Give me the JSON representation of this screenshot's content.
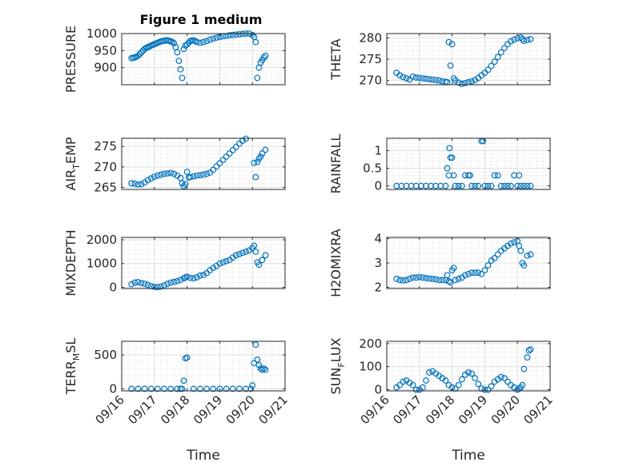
{
  "figure": {
    "title": "Figure 1 medium"
  },
  "chart_data": [
    {
      "type": "scatter",
      "ylabel": "PRESSURE",
      "ylim": [
        850,
        1000
      ],
      "yticks": [
        900,
        950,
        1000
      ],
      "xlim": [
        0,
        5
      ],
      "xticks": [
        0,
        1,
        2,
        3,
        4,
        5
      ],
      "xticklabels": [],
      "grid": true,
      "minor_grid": true,
      "marker_color": "#0072bd",
      "x": [
        0.3,
        0.35,
        0.4,
        0.45,
        0.5,
        0.55,
        0.6,
        0.65,
        0.7,
        0.75,
        0.8,
        0.85,
        0.9,
        0.95,
        1.0,
        1.05,
        1.1,
        1.15,
        1.2,
        1.25,
        1.3,
        1.35,
        1.4,
        1.45,
        1.5,
        1.55,
        1.6,
        1.65,
        1.7,
        1.75,
        1.8,
        1.85,
        1.9,
        1.95,
        2.0,
        2.05,
        2.1,
        2.15,
        2.2,
        2.25,
        2.3,
        2.4,
        2.5,
        2.6,
        2.7,
        2.8,
        2.9,
        3.0,
        3.1,
        3.2,
        3.3,
        3.4,
        3.5,
        3.6,
        3.7,
        3.8,
        3.9,
        4.0,
        4.05,
        4.1,
        4.15,
        4.2,
        4.25,
        4.3,
        4.35,
        4.4
      ],
      "y": [
        928,
        929,
        930,
        932,
        935,
        940,
        945,
        950,
        955,
        958,
        960,
        962,
        965,
        967,
        969,
        971,
        973,
        975,
        977,
        978,
        979,
        980,
        980,
        979,
        977,
        975,
        972,
        960,
        945,
        920,
        895,
        870,
        955,
        965,
        968,
        973,
        978,
        980,
        980,
        978,
        975,
        973,
        975,
        978,
        982,
        985,
        988,
        990,
        992,
        993,
        995,
        996,
        997,
        998,
        999,
        1000,
        1000,
        996,
        990,
        975,
        870,
        900,
        915,
        922,
        930,
        935
      ]
    },
    {
      "type": "scatter",
      "ylabel": "THETA",
      "ylim": [
        269,
        281
      ],
      "yticks": [
        270,
        275,
        280
      ],
      "xlim": [
        0,
        5
      ],
      "xticks": [
        0,
        1,
        2,
        3,
        4,
        5
      ],
      "xticklabels": [],
      "grid": true,
      "minor_grid": true,
      "marker_color": "#0072bd",
      "x": [
        0.3,
        0.4,
        0.5,
        0.6,
        0.7,
        0.8,
        0.9,
        1.0,
        1.1,
        1.2,
        1.3,
        1.4,
        1.5,
        1.6,
        1.7,
        1.8,
        1.85,
        1.9,
        1.95,
        2.0,
        2.05,
        2.1,
        2.2,
        2.3,
        2.4,
        2.5,
        2.6,
        2.7,
        2.8,
        2.9,
        3.0,
        3.1,
        3.2,
        3.3,
        3.4,
        3.5,
        3.6,
        3.7,
        3.8,
        3.9,
        4.0,
        4.1,
        4.15,
        4.2,
        4.3,
        4.4
      ],
      "y": [
        271.8,
        271.2,
        270.8,
        270.5,
        270.2,
        270.9,
        270.7,
        270.6,
        270.5,
        270.4,
        270.3,
        270.2,
        270.1,
        270.0,
        269.8,
        269.7,
        269.6,
        279.0,
        273.5,
        278.5,
        270.5,
        270.0,
        269.5,
        269.2,
        269.4,
        269.6,
        269.8,
        270.1,
        270.6,
        271.2,
        271.8,
        272.5,
        273.4,
        274.4,
        275.5,
        276.6,
        277.6,
        278.5,
        279.2,
        279.6,
        279.9,
        280.1,
        279.7,
        279.3,
        279.5,
        279.7
      ]
    },
    {
      "type": "scatter",
      "ylabel": "AIR_TEMP",
      "ylim": [
        264.5,
        277
      ],
      "yticks": [
        265,
        270,
        275
      ],
      "xlim": [
        0,
        5
      ],
      "xticks": [
        0,
        1,
        2,
        3,
        4,
        5
      ],
      "xticklabels": [],
      "grid": true,
      "minor_grid": true,
      "marker_color": "#0072bd",
      "x": [
        0.3,
        0.4,
        0.5,
        0.6,
        0.7,
        0.8,
        0.9,
        1.0,
        1.1,
        1.2,
        1.3,
        1.4,
        1.5,
        1.6,
        1.7,
        1.8,
        1.85,
        1.9,
        1.95,
        2.0,
        2.05,
        2.1,
        2.2,
        2.3,
        2.4,
        2.5,
        2.6,
        2.7,
        2.8,
        2.9,
        3.0,
        3.1,
        3.2,
        3.3,
        3.4,
        3.5,
        3.6,
        3.7,
        3.8,
        3.9,
        4.0,
        4.05,
        4.1,
        4.15,
        4.2,
        4.25,
        4.3,
        4.4
      ],
      "y": [
        266.0,
        265.9,
        265.7,
        265.8,
        266.2,
        266.8,
        267.2,
        267.6,
        267.9,
        268.1,
        268.3,
        268.4,
        268.5,
        268.3,
        267.9,
        267.3,
        266.0,
        265.3,
        265.8,
        268.8,
        267.4,
        267.5,
        267.7,
        267.9,
        268.0,
        268.1,
        268.3,
        268.6,
        269.3,
        270.1,
        270.9,
        271.7,
        272.5,
        273.3,
        274.1,
        274.9,
        275.7,
        276.4,
        276.9,
        277.2,
        277.1,
        271.0,
        267.5,
        271.2,
        272.0,
        272.5,
        273.3,
        274.2
      ]
    },
    {
      "type": "scatter",
      "ylabel": "RAINFALL",
      "ylim": [
        -0.1,
        1.35
      ],
      "yticks": [
        0,
        0.5,
        1
      ],
      "xlim": [
        0,
        5
      ],
      "xticks": [
        0,
        1,
        2,
        3,
        4,
        5
      ],
      "xticklabels": [],
      "grid": true,
      "minor_grid": true,
      "marker_color": "#0072bd",
      "x": [
        0.3,
        0.45,
        0.6,
        0.75,
        0.9,
        1.05,
        1.2,
        1.35,
        1.5,
        1.65,
        1.8,
        1.85,
        1.9,
        1.92,
        1.95,
        2.0,
        2.05,
        2.1,
        2.2,
        2.3,
        2.4,
        2.5,
        2.55,
        2.6,
        2.7,
        2.8,
        2.9,
        2.95,
        3.0,
        3.1,
        3.2,
        3.3,
        3.4,
        3.5,
        3.6,
        3.7,
        3.8,
        3.9,
        4.0,
        4.05,
        4.1,
        4.2,
        4.3,
        4.4
      ],
      "y": [
        0,
        0,
        0,
        0,
        0,
        0,
        0,
        0,
        0,
        0,
        0,
        0.5,
        0.3,
        1.07,
        0.8,
        0.8,
        0.3,
        0,
        0,
        0,
        0.3,
        0.3,
        0.3,
        0,
        0,
        0,
        1.27,
        1.27,
        0,
        0,
        0,
        0.3,
        0.3,
        0,
        0,
        0,
        0,
        0.3,
        0,
        0.3,
        0,
        0,
        0,
        0
      ]
    },
    {
      "type": "scatter",
      "ylabel": "MIXDEPTH",
      "ylim": [
        -50,
        2100
      ],
      "yticks": [
        0,
        1000,
        2000
      ],
      "xlim": [
        0,
        5
      ],
      "xticks": [
        0,
        1,
        2,
        3,
        4,
        5
      ],
      "xticklabels": [],
      "grid": true,
      "minor_grid": true,
      "marker_color": "#0072bd",
      "x": [
        0.3,
        0.4,
        0.5,
        0.6,
        0.7,
        0.8,
        0.9,
        1.0,
        1.1,
        1.2,
        1.3,
        1.4,
        1.5,
        1.6,
        1.7,
        1.8,
        1.9,
        1.95,
        2.0,
        2.1,
        2.2,
        2.3,
        2.4,
        2.5,
        2.6,
        2.7,
        2.8,
        2.9,
        3.0,
        3.1,
        3.2,
        3.3,
        3.4,
        3.5,
        3.6,
        3.7,
        3.8,
        3.9,
        4.0,
        4.05,
        4.1,
        4.15,
        4.2,
        4.3,
        4.4
      ],
      "y": [
        130,
        200,
        220,
        180,
        150,
        100,
        50,
        20,
        10,
        30,
        80,
        150,
        200,
        230,
        260,
        310,
        380,
        420,
        450,
        400,
        380,
        420,
        500,
        520,
        600,
        720,
        820,
        900,
        1000,
        1050,
        1100,
        1150,
        1250,
        1350,
        1400,
        1450,
        1500,
        1550,
        1650,
        1750,
        1500,
        1050,
        950,
        1150,
        1350
      ]
    },
    {
      "type": "scatter",
      "ylabel": "H2OMIXRA",
      "ylim": [
        1.95,
        4.05
      ],
      "yticks": [
        2,
        3,
        4
      ],
      "xlim": [
        0,
        5
      ],
      "xticks": [
        0,
        1,
        2,
        3,
        4,
        5
      ],
      "xticklabels": [],
      "grid": true,
      "minor_grid": true,
      "marker_color": "#0072bd",
      "x": [
        0.3,
        0.4,
        0.5,
        0.6,
        0.7,
        0.8,
        0.9,
        1.0,
        1.1,
        1.2,
        1.3,
        1.4,
        1.5,
        1.6,
        1.7,
        1.8,
        1.85,
        1.9,
        1.95,
        2.0,
        2.05,
        2.1,
        2.2,
        2.3,
        2.4,
        2.5,
        2.6,
        2.7,
        2.8,
        2.9,
        3.0,
        3.1,
        3.2,
        3.3,
        3.4,
        3.5,
        3.6,
        3.7,
        3.8,
        3.9,
        4.0,
        4.05,
        4.1,
        4.15,
        4.2,
        4.3,
        4.4
      ],
      "y": [
        2.35,
        2.3,
        2.28,
        2.3,
        2.35,
        2.4,
        2.4,
        2.42,
        2.4,
        2.38,
        2.36,
        2.35,
        2.33,
        2.3,
        2.3,
        2.3,
        2.5,
        2.25,
        2.2,
        2.7,
        2.8,
        2.3,
        2.35,
        2.4,
        2.5,
        2.55,
        2.6,
        2.6,
        2.6,
        2.55,
        2.7,
        2.9,
        3.1,
        3.2,
        3.35,
        3.5,
        3.6,
        3.7,
        3.8,
        3.85,
        3.9,
        3.7,
        3.5,
        3.0,
        2.9,
        3.3,
        3.35
      ]
    },
    {
      "type": "scatter",
      "ylabel": "TERR_MSL",
      "ylim": [
        -30,
        700
      ],
      "yticks": [
        0,
        500
      ],
      "xlim": [
        0,
        5
      ],
      "xticks": [
        0,
        1,
        2,
        3,
        4,
        5
      ],
      "xticklabels": [
        "09/16",
        "09/17",
        "09/18",
        "09/19",
        "09/20",
        "09/21"
      ],
      "xlabel": "Time",
      "grid": true,
      "minor_grid": true,
      "marker_color": "#0072bd",
      "x": [
        0.3,
        0.5,
        0.7,
        0.9,
        1.1,
        1.3,
        1.5,
        1.7,
        1.8,
        1.85,
        1.9,
        1.95,
        2.0,
        2.2,
        2.4,
        2.6,
        2.8,
        3.0,
        3.2,
        3.4,
        3.6,
        3.8,
        3.95,
        4.0,
        4.05,
        4.1,
        4.15,
        4.2,
        4.25,
        4.3,
        4.35,
        4.4
      ],
      "y": [
        0,
        0,
        0,
        0,
        0,
        0,
        0,
        0,
        0,
        0,
        120,
        450,
        460,
        0,
        0,
        0,
        0,
        0,
        0,
        0,
        0,
        0,
        0,
        50,
        380,
        650,
        430,
        350,
        300,
        280,
        300,
        280
      ]
    },
    {
      "type": "scatter",
      "ylabel": "SUN_FLUX",
      "ylim": [
        -5,
        210
      ],
      "yticks": [
        0,
        100,
        200
      ],
      "xlim": [
        0,
        5
      ],
      "xticks": [
        0,
        1,
        2,
        3,
        4,
        5
      ],
      "xticklabels": [
        "09/16",
        "09/17",
        "09/18",
        "09/19",
        "09/20",
        "09/21"
      ],
      "xlabel": "Time",
      "grid": true,
      "minor_grid": true,
      "marker_color": "#0072bd",
      "x": [
        0.3,
        0.4,
        0.5,
        0.6,
        0.7,
        0.8,
        0.9,
        1.0,
        1.1,
        1.2,
        1.3,
        1.4,
        1.5,
        1.6,
        1.7,
        1.8,
        1.9,
        2.0,
        2.1,
        2.2,
        2.3,
        2.4,
        2.5,
        2.6,
        2.7,
        2.8,
        2.9,
        3.0,
        3.1,
        3.2,
        3.3,
        3.4,
        3.5,
        3.6,
        3.7,
        3.8,
        3.9,
        4.0,
        4.05,
        4.1,
        4.15,
        4.2,
        4.3,
        4.35,
        4.4
      ],
      "y": [
        10,
        20,
        35,
        40,
        30,
        20,
        0,
        0,
        10,
        40,
        75,
        80,
        70,
        60,
        50,
        40,
        20,
        10,
        5,
        20,
        45,
        65,
        75,
        70,
        50,
        25,
        5,
        0,
        0,
        15,
        35,
        45,
        55,
        50,
        35,
        20,
        10,
        0,
        5,
        10,
        20,
        90,
        140,
        170,
        175
      ]
    }
  ]
}
